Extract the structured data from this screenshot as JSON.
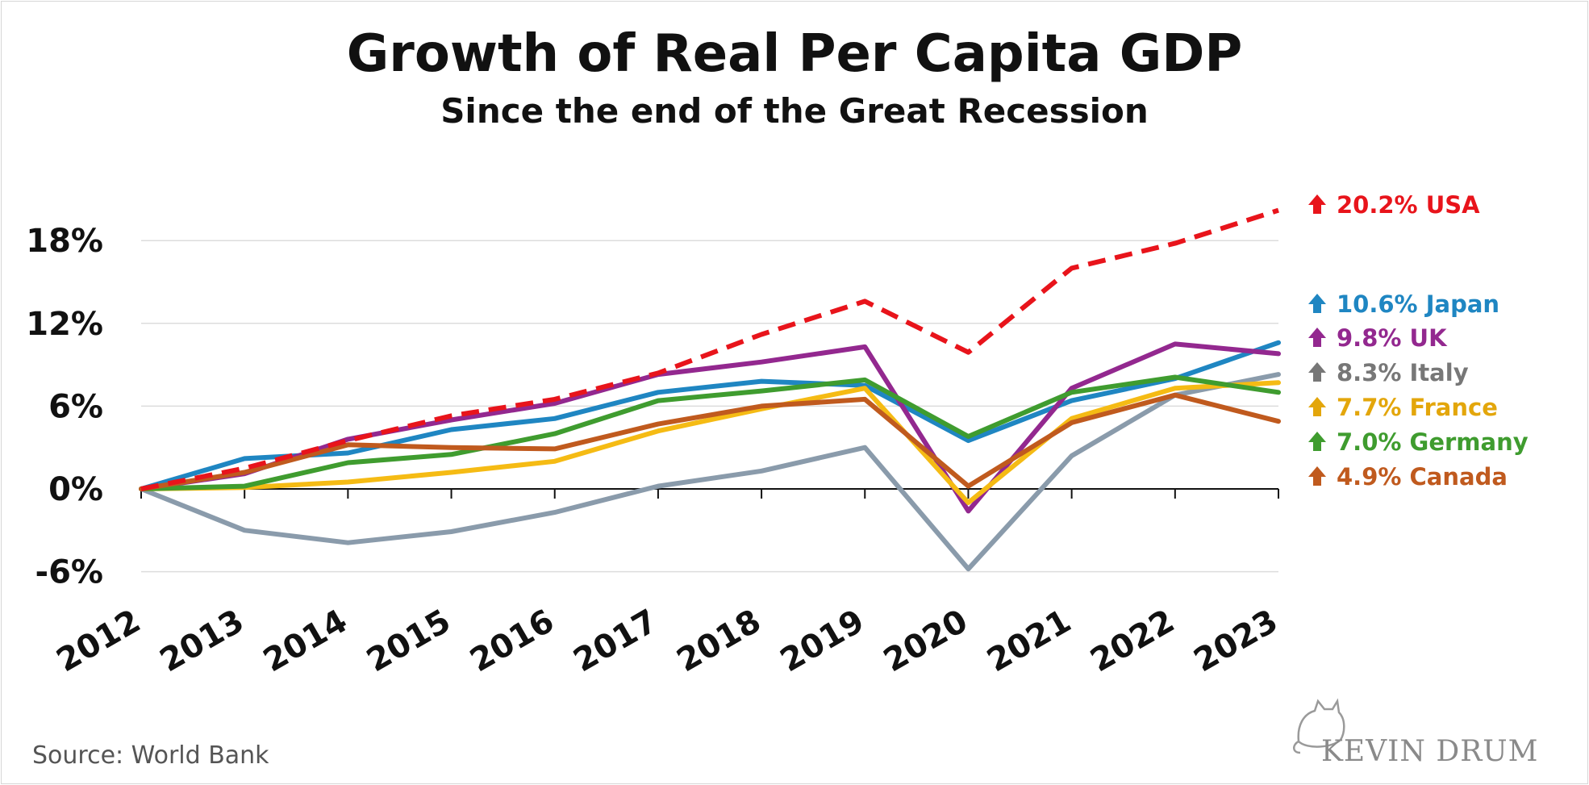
{
  "chart_data": {
    "type": "line",
    "title": "Growth of Real Per Capita GDP",
    "subtitle": "Since the end of the Great Recession",
    "x": [
      "2012",
      "2013",
      "2014",
      "2015",
      "2016",
      "2017",
      "2018",
      "2019",
      "2020",
      "2021",
      "2022",
      "2023"
    ],
    "y_ticks": [
      "18%",
      "12%",
      "6%",
      "0%",
      "-6%"
    ],
    "y_tick_values": [
      18,
      12,
      6,
      0,
      -6
    ],
    "ylim": [
      -7,
      21
    ],
    "grid": true,
    "series": [
      {
        "name": "USA",
        "label": "20.2% USA",
        "color": "#e8141b",
        "dashed": true,
        "values": [
          0,
          1.5,
          3.5,
          5.3,
          6.5,
          8.4,
          11.2,
          13.6,
          9.9,
          16.0,
          17.8,
          20.2
        ]
      },
      {
        "name": "Japan",
        "label": "10.6% Japan",
        "color": "#1f86c2",
        "dashed": false,
        "values": [
          0,
          2.2,
          2.6,
          4.3,
          5.1,
          7.0,
          7.8,
          7.5,
          3.5,
          6.4,
          8.0,
          10.6
        ]
      },
      {
        "name": "UK",
        "label": "9.8% UK",
        "color": "#93288f",
        "dashed": false,
        "values": [
          0,
          1.1,
          3.6,
          5.0,
          6.2,
          8.3,
          9.2,
          10.3,
          -1.6,
          7.3,
          10.5,
          9.8
        ]
      },
      {
        "name": "Italy",
        "label": "8.3% Italy",
        "color": "#8a9bab",
        "labelColor": "#777777",
        "dashed": false,
        "values": [
          0,
          -3.0,
          -3.9,
          -3.1,
          -1.7,
          0.2,
          1.3,
          3.0,
          -5.8,
          2.4,
          6.8,
          8.3
        ]
      },
      {
        "name": "France",
        "label": "7.7% France",
        "color": "#f5bb14",
        "labelColor": "#e3a60b",
        "dashed": false,
        "values": [
          0,
          0.1,
          0.5,
          1.2,
          2.0,
          4.2,
          5.8,
          7.3,
          -1.0,
          5.1,
          7.3,
          7.7
        ]
      },
      {
        "name": "Germany",
        "label": "7.0% Germany",
        "color": "#3f9c2f",
        "dashed": false,
        "values": [
          0,
          0.2,
          1.9,
          2.5,
          4.0,
          6.4,
          7.1,
          7.9,
          3.8,
          7.0,
          8.1,
          7.0
        ]
      },
      {
        "name": "Canada",
        "label": "4.9% Canada",
        "color": "#c05a1e",
        "dashed": false,
        "values": [
          0,
          1.2,
          3.2,
          3.0,
          2.9,
          4.7,
          6.0,
          6.5,
          0.2,
          4.8,
          6.8,
          4.9
        ]
      }
    ],
    "source": "Source: World Bank",
    "brand": "KEVIN DRUM"
  }
}
